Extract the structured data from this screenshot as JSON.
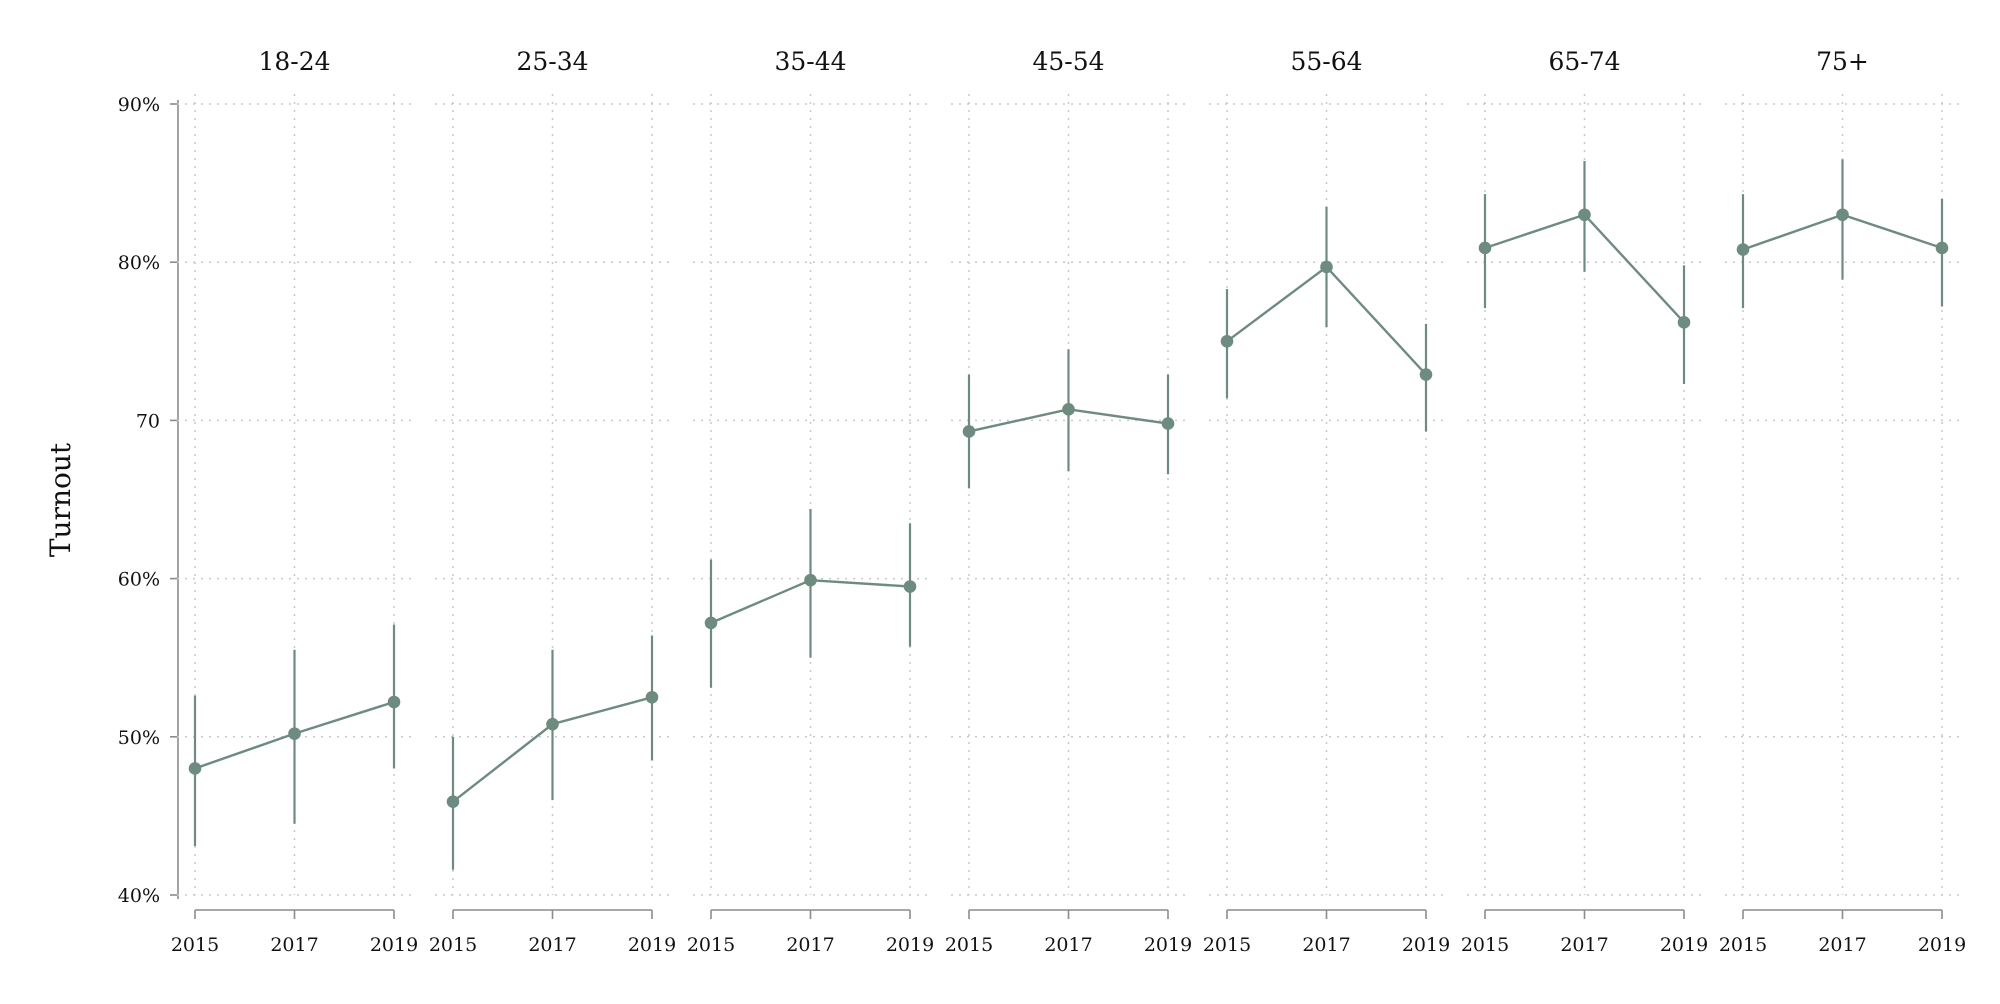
{
  "chart_data": {
    "type": "line",
    "ylabel": "Turnout",
    "ylim": [
      40,
      90
    ],
    "yticks": [
      {
        "value": 90,
        "label": "90%"
      },
      {
        "value": 80,
        "label": "80%"
      },
      {
        "value": 70,
        "label": "70"
      },
      {
        "value": 60,
        "label": "60%"
      },
      {
        "value": 50,
        "label": "50%"
      },
      {
        "value": 40,
        "label": "40%"
      }
    ],
    "x": [
      2015,
      2017,
      2019
    ],
    "x_tick_labels": [
      "2015",
      "2017",
      "2019"
    ],
    "grid": true,
    "series_color": "#6e8b80",
    "panels": [
      {
        "title": "18-24",
        "values": [
          48.0,
          50.2,
          52.2
        ],
        "ci_low": [
          43.1,
          44.5,
          48.0
        ],
        "ci_high": [
          52.6,
          55.5,
          57.1
        ]
      },
      {
        "title": "25-34",
        "values": [
          45.9,
          50.8,
          52.5
        ],
        "ci_low": [
          41.6,
          46.0,
          48.5
        ],
        "ci_high": [
          50.0,
          55.5,
          56.4
        ]
      },
      {
        "title": "35-44",
        "values": [
          57.2,
          59.9,
          59.5
        ],
        "ci_low": [
          53.1,
          55.0,
          55.7
        ],
        "ci_high": [
          61.2,
          64.4,
          63.5
        ]
      },
      {
        "title": "45-54",
        "values": [
          69.3,
          70.7,
          69.8
        ],
        "ci_low": [
          65.7,
          66.8,
          66.6
        ],
        "ci_high": [
          72.9,
          74.5,
          72.9
        ]
      },
      {
        "title": "55-64",
        "values": [
          75.0,
          79.7,
          72.9
        ],
        "ci_low": [
          71.4,
          75.9,
          69.3
        ],
        "ci_high": [
          78.3,
          83.5,
          76.1
        ]
      },
      {
        "title": "65-74",
        "values": [
          80.9,
          83.0,
          76.2
        ],
        "ci_low": [
          77.1,
          79.4,
          72.3
        ],
        "ci_high": [
          84.3,
          86.4,
          79.8
        ]
      },
      {
        "title": "75+",
        "values": [
          80.8,
          83.0,
          80.9
        ],
        "ci_low": [
          77.1,
          78.9,
          77.2
        ],
        "ci_high": [
          84.3,
          86.5,
          84.0
        ]
      }
    ]
  }
}
